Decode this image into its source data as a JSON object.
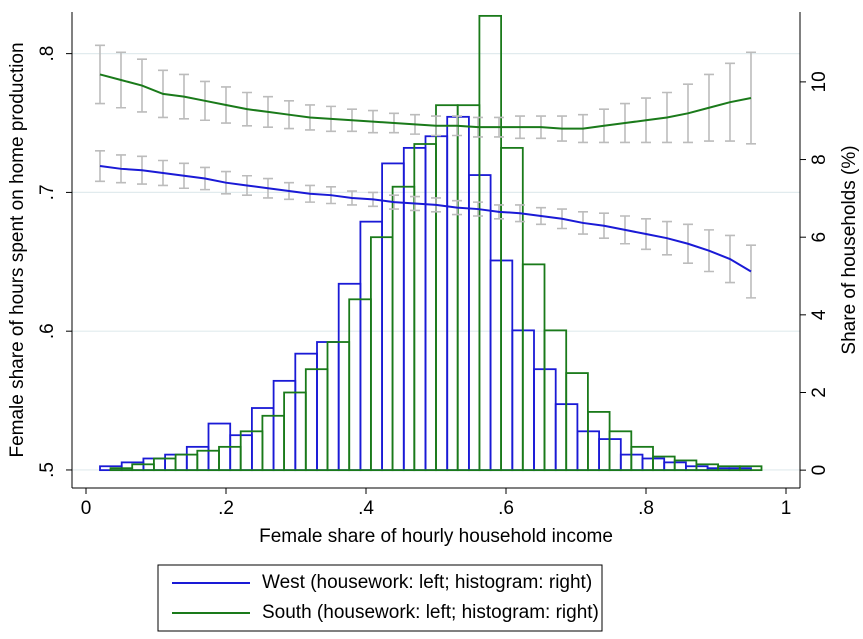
{
  "chart_data": {
    "type": "histogram-line",
    "xlabel": "Female share of hourly household income",
    "ylabel": "Female share of hours spent on home production",
    "y2label": "Share of households (%)",
    "xlim": [
      -0.02,
      1.02
    ],
    "xticks": [
      0,
      {
        "value": 0.2,
        "label": ".2"
      },
      {
        "value": 0.4,
        "label": ".4"
      },
      {
        "value": 0.6,
        "label": ".6"
      },
      {
        "value": 0.8,
        "label": ".8"
      },
      1
    ],
    "ylim": [
      0.487,
      0.83
    ],
    "yticks": [
      {
        "value": 0.5,
        "label": ".5"
      },
      {
        "value": 0.6,
        "label": ".6"
      },
      {
        "value": 0.7,
        "label": ".7"
      },
      {
        "value": 0.8,
        "label": ".8"
      }
    ],
    "y2lim": [
      -0.46,
      11.8
    ],
    "y2ticks": [
      0,
      2,
      4,
      6,
      8,
      10
    ],
    "grid": true,
    "error_color": "#bcbcbc",
    "legend": "bottom",
    "series": [
      {
        "name": "West (housework: left; histogram: right)",
        "color": "#1a1ad6",
        "line": {
          "x": [
            0.02,
            0.05,
            0.08,
            0.11,
            0.14,
            0.17,
            0.2,
            0.23,
            0.26,
            0.29,
            0.32,
            0.35,
            0.38,
            0.41,
            0.44,
            0.47,
            0.5,
            0.53,
            0.56,
            0.59,
            0.62,
            0.65,
            0.68,
            0.71,
            0.74,
            0.77,
            0.8,
            0.83,
            0.86,
            0.89,
            0.92,
            0.95
          ],
          "values": [
            0.719,
            0.717,
            0.716,
            0.714,
            0.712,
            0.71,
            0.707,
            0.705,
            0.703,
            0.701,
            0.699,
            0.698,
            0.696,
            0.695,
            0.693,
            0.692,
            0.691,
            0.689,
            0.688,
            0.686,
            0.685,
            0.683,
            0.681,
            0.678,
            0.676,
            0.673,
            0.67,
            0.667,
            0.663,
            0.658,
            0.652,
            0.643
          ],
          "errors": [
            0.011,
            0.01,
            0.01,
            0.009,
            0.009,
            0.008,
            0.008,
            0.007,
            0.007,
            0.006,
            0.006,
            0.006,
            0.005,
            0.005,
            0.005,
            0.005,
            0.005,
            0.005,
            0.005,
            0.005,
            0.006,
            0.006,
            0.007,
            0.008,
            0.009,
            0.01,
            0.011,
            0.012,
            0.014,
            0.015,
            0.017,
            0.019
          ]
        },
        "histogram": {
          "axis": "y2",
          "bins": [
            0.02,
            0.051,
            0.082,
            0.113,
            0.144,
            0.175,
            0.206,
            0.237,
            0.268,
            0.299,
            0.33,
            0.361,
            0.392,
            0.423,
            0.454,
            0.485,
            0.516,
            0.547,
            0.578,
            0.609,
            0.64,
            0.671,
            0.702,
            0.733,
            0.764,
            0.795,
            0.826,
            0.857,
            0.888,
            0.919,
            0.95
          ],
          "values": [
            0.1,
            0.2,
            0.3,
            0.4,
            0.6,
            1.2,
            0.9,
            1.6,
            2.3,
            3.0,
            3.3,
            4.8,
            6.4,
            7.9,
            8.3,
            8.6,
            9.1,
            7.6,
            5.4,
            3.6,
            2.6,
            1.7,
            1.0,
            0.8,
            0.4,
            0.3,
            0.2,
            0.1,
            0.05,
            0.05
          ]
        }
      },
      {
        "name": "South (housework: left; histogram: right)",
        "color": "#1a7a1a",
        "line": {
          "x": [
            0.02,
            0.05,
            0.08,
            0.11,
            0.14,
            0.17,
            0.2,
            0.23,
            0.26,
            0.29,
            0.32,
            0.35,
            0.38,
            0.41,
            0.44,
            0.47,
            0.5,
            0.53,
            0.56,
            0.59,
            0.62,
            0.65,
            0.68,
            0.71,
            0.74,
            0.77,
            0.8,
            0.83,
            0.86,
            0.89,
            0.92,
            0.95
          ],
          "values": [
            0.785,
            0.781,
            0.777,
            0.771,
            0.769,
            0.766,
            0.763,
            0.76,
            0.758,
            0.756,
            0.754,
            0.753,
            0.752,
            0.751,
            0.75,
            0.749,
            0.748,
            0.748,
            0.747,
            0.747,
            0.747,
            0.747,
            0.746,
            0.746,
            0.748,
            0.75,
            0.752,
            0.754,
            0.757,
            0.761,
            0.765,
            0.768
          ],
          "errors": [
            0.021,
            0.02,
            0.019,
            0.017,
            0.016,
            0.014,
            0.013,
            0.012,
            0.011,
            0.01,
            0.009,
            0.009,
            0.008,
            0.008,
            0.007,
            0.007,
            0.007,
            0.007,
            0.007,
            0.007,
            0.008,
            0.008,
            0.009,
            0.01,
            0.012,
            0.014,
            0.016,
            0.018,
            0.021,
            0.024,
            0.028,
            0.033
          ]
        },
        "histogram": {
          "axis": "y2",
          "bins": [
            0.035,
            0.066,
            0.097,
            0.128,
            0.159,
            0.19,
            0.221,
            0.252,
            0.283,
            0.314,
            0.345,
            0.376,
            0.407,
            0.438,
            0.469,
            0.5,
            0.531,
            0.562,
            0.593,
            0.624,
            0.655,
            0.686,
            0.717,
            0.748,
            0.779,
            0.81,
            0.841,
            0.872,
            0.903,
            0.934,
            0.965
          ],
          "values": [
            0.05,
            0.15,
            0.3,
            0.4,
            0.5,
            0.6,
            1.0,
            1.4,
            2.0,
            2.6,
            3.3,
            4.4,
            6.0,
            7.3,
            8.4,
            9.4,
            9.4,
            11.7,
            8.3,
            5.3,
            3.6,
            2.5,
            1.5,
            1.0,
            0.6,
            0.35,
            0.25,
            0.15,
            0.1,
            0.1
          ]
        }
      }
    ]
  }
}
